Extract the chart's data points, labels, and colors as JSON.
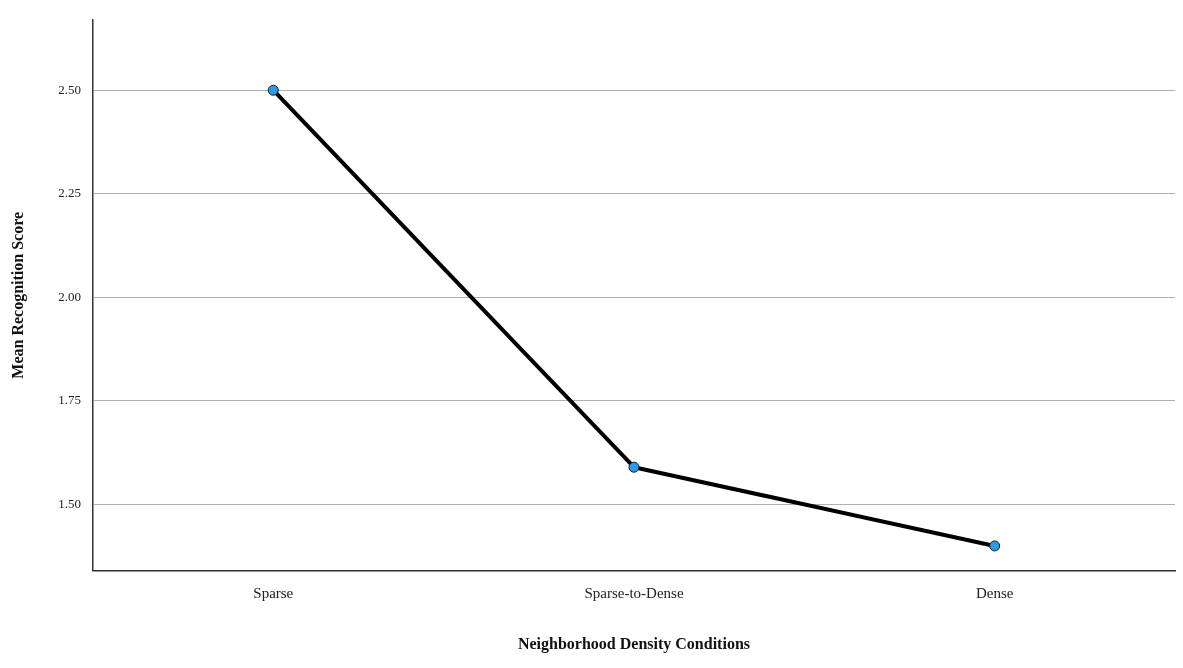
{
  "chart_data": {
    "type": "line",
    "xlabel": "Neighborhood Density Conditions",
    "ylabel": "Mean Recognition Score",
    "categories": [
      "Sparse",
      "Sparse-to-Dense",
      "Dense"
    ],
    "series": [
      {
        "color": "#000000",
        "values": [
          2.5,
          1.59,
          1.4
        ]
      }
    ],
    "ylim": [
      1.34,
      2.67
    ],
    "yticks": [
      {
        "value": 1.5,
        "label": "1.50"
      },
      {
        "value": 1.75,
        "label": "1.75"
      },
      {
        "value": 2.0,
        "label": "2.00"
      },
      {
        "value": 2.25,
        "label": "2.25"
      },
      {
        "value": 2.5,
        "label": "2.50"
      }
    ],
    "grid": "y",
    "legend": false,
    "marker": "circle",
    "line_style": "solid"
  }
}
